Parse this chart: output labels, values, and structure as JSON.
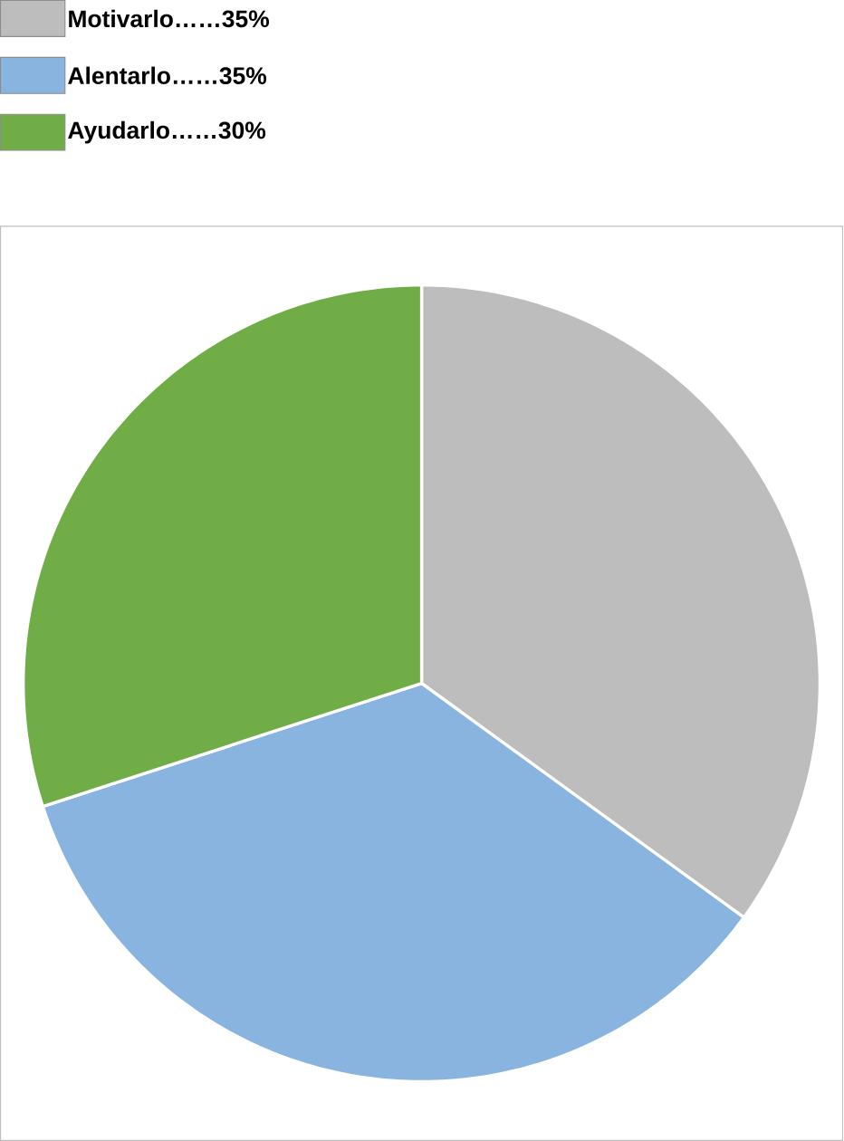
{
  "chart_data": {
    "type": "pie",
    "categories": [
      "Motivarlo……35%",
      "Alentarlo……35%",
      "Ayudarlo……30%"
    ],
    "values": [
      35,
      35,
      30
    ],
    "colors": [
      "#bdbdbd",
      "#8ab4e0",
      "#70ad47"
    ],
    "legend": "top left"
  }
}
